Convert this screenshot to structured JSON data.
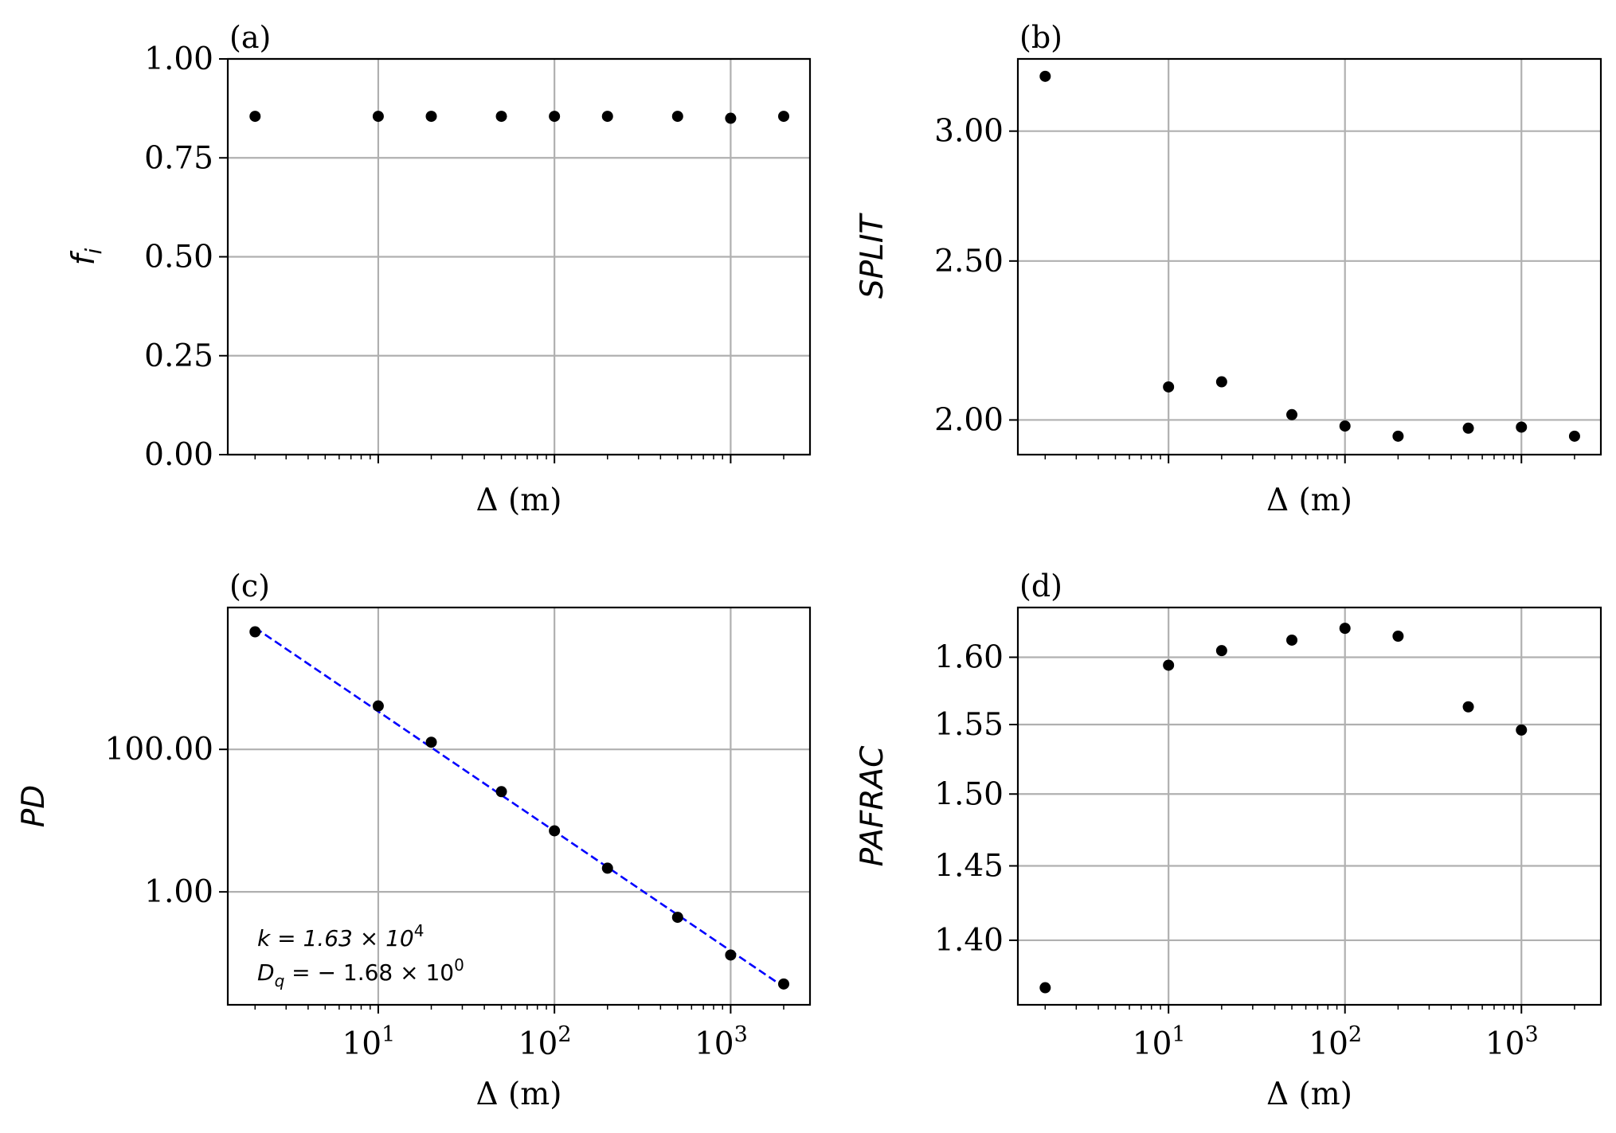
{
  "chart_data": [
    {
      "type": "scatter",
      "panel_label": "(a)",
      "xlabel": "Δ (m)",
      "ylabel": "f_i",
      "ylabel_main": "f",
      "ylabel_sub": "i",
      "xscale": "log",
      "yscale": "linear",
      "xlim": [
        1.4,
        2820
      ],
      "ylim": [
        0,
        1.0
      ],
      "yticks": [
        0,
        0.25,
        0.5,
        0.75,
        1.0
      ],
      "ytick_labels": [
        "0.00",
        "0.25",
        "0.50",
        "0.75",
        "1.00"
      ],
      "xtick_labels_shown": false,
      "grid": true,
      "x": [
        2,
        10,
        20,
        50,
        100,
        200,
        500,
        1000,
        2000
      ],
      "y": [
        0.855,
        0.855,
        0.855,
        0.855,
        0.855,
        0.855,
        0.855,
        0.85,
        0.855
      ]
    },
    {
      "type": "scatter",
      "panel_label": "(b)",
      "xlabel": "Δ (m)",
      "ylabel": "SPLIT",
      "xscale": "log",
      "yscale": "log",
      "xlim": [
        1.4,
        2820
      ],
      "ylim": [
        1.905,
        3.32
      ],
      "yticks": [
        2.0,
        2.5,
        3.0
      ],
      "ytick_labels": [
        "2.00",
        "2.50",
        "3.00"
      ],
      "xtick_labels_shown": false,
      "grid": true,
      "x": [
        2,
        10,
        20,
        50,
        100,
        200,
        500,
        1000,
        2000
      ],
      "y": [
        3.24,
        2.095,
        2.11,
        2.015,
        1.983,
        1.955,
        1.977,
        1.98,
        1.955
      ]
    },
    {
      "type": "scatter",
      "panel_label": "(c)",
      "xlabel": "Δ (m)",
      "ylabel": "PD",
      "xscale": "log",
      "yscale": "log",
      "xlim": [
        1.4,
        2820
      ],
      "ylim": [
        0.026,
        9800
      ],
      "yticks": [
        1,
        100
      ],
      "ytick_labels": [
        "1.00",
        "100.00"
      ],
      "xtick_labels_shown": true,
      "grid": true,
      "x": [
        2,
        10,
        20,
        50,
        100,
        200,
        500,
        1000,
        2000
      ],
      "y": [
        4470,
        407,
        126,
        25.5,
        7.2,
        2.15,
        0.44,
        0.13,
        0.051
      ],
      "fit": {
        "k": 16300,
        "Dq": -1.68,
        "x_range": [
          2,
          2000
        ],
        "color": "#0000ff",
        "style": "dashed"
      },
      "annotations": {
        "k_text": "k = 1.63 × 10",
        "k_exp": "4",
        "dq_text_main": "D",
        "dq_text_sub": "q",
        "dq_text_rest": " = − 1.68 × 10",
        "dq_exp": "0"
      }
    },
    {
      "type": "scatter",
      "panel_label": "(d)",
      "xlabel": "Δ (m)",
      "ylabel": "PAFRAC",
      "xscale": "log",
      "yscale": "log",
      "xlim": [
        1.4,
        2820
      ],
      "ylim": [
        1.358,
        1.638
      ],
      "yticks": [
        1.4,
        1.45,
        1.5,
        1.55,
        1.6
      ],
      "ytick_labels": [
        "1.40",
        "1.45",
        "1.50",
        "1.55",
        "1.60"
      ],
      "xtick_labels_shown": true,
      "grid": true,
      "x": [
        2,
        10,
        20,
        50,
        100,
        200,
        500,
        1000
      ],
      "y": [
        1.369,
        1.594,
        1.605,
        1.613,
        1.622,
        1.616,
        1.563,
        1.546
      ]
    }
  ],
  "xtick_values": [
    10,
    100,
    1000
  ],
  "xtick_exponents": [
    "1",
    "2",
    "3"
  ],
  "xtick_base": "10",
  "colors": {
    "marker": "#000000",
    "grid": "#b0b0b0",
    "fit": "#0000ff"
  }
}
